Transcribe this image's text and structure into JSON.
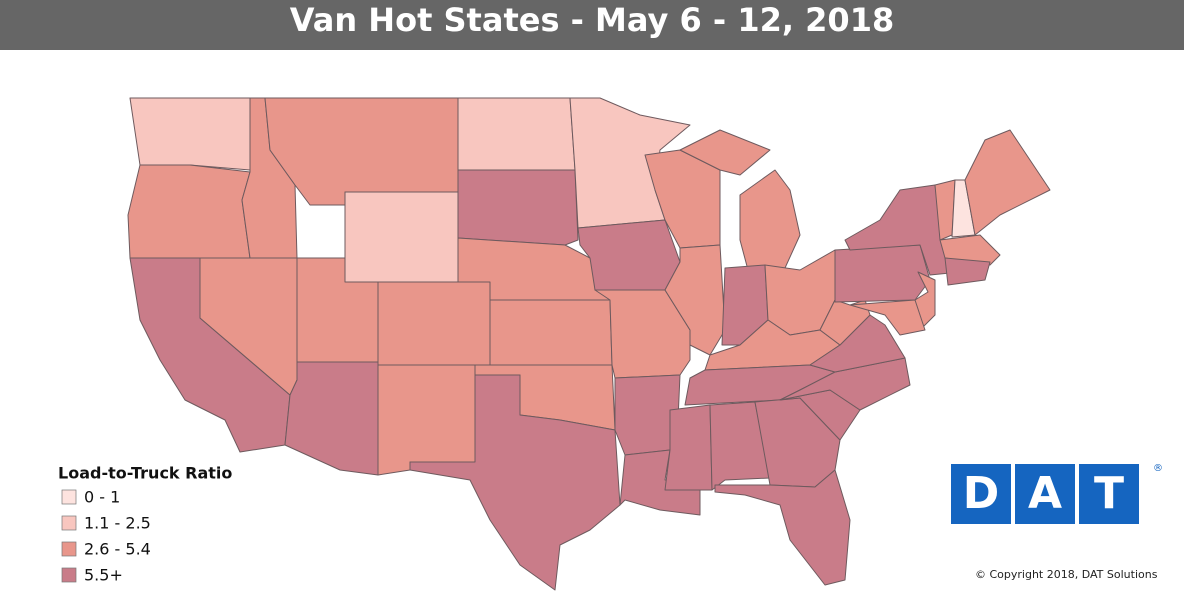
{
  "header": {
    "title": "Van Hot States - May 6 - 12, 2018"
  },
  "legend": {
    "title": "Load-to-Truck Ratio",
    "items": [
      {
        "label": "0 - 1",
        "color": "#fde3df"
      },
      {
        "label": "1.1 - 2.5",
        "color": "#f8c6bf"
      },
      {
        "label": "2.6 - 5.4",
        "color": "#e8968b"
      },
      {
        "label": "5.5+",
        "color": "#c97c89"
      }
    ]
  },
  "logo": {
    "letters": [
      "D",
      "A",
      "T"
    ],
    "mark": "®",
    "color": "#1565c0"
  },
  "footer": {
    "copyright": "© Copyright 2018, DAT Solutions"
  }
}
